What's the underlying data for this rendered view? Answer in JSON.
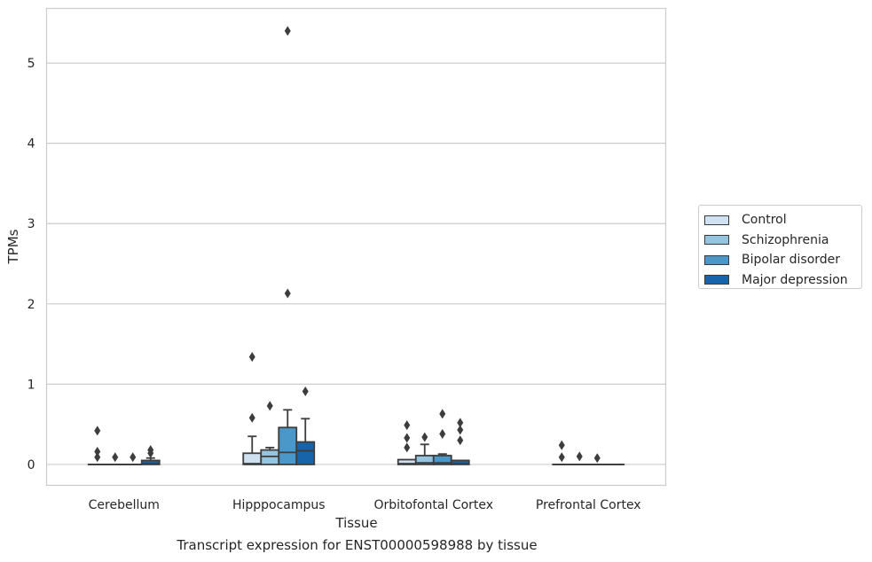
{
  "caption": "Transcript expression for ENST00000598988 by tissue",
  "chart_data": {
    "type": "box",
    "title": "",
    "xlabel": "Tissue",
    "ylabel": "TPMs",
    "ylim": [
      -0.26,
      5.68
    ],
    "yticks": [
      0,
      1,
      2,
      3,
      4,
      5
    ],
    "grid": "horizontal",
    "legend_position": "right",
    "categories": [
      "Cerebellum",
      "Hipppocampus",
      "Orbitofontal Cortex",
      "Prefrontal Cortex"
    ],
    "series": [
      {
        "name": "Control",
        "color": "#d0e1f2",
        "boxes": [
          {
            "q1": 0,
            "median": 0,
            "q3": 0,
            "whisker_low": 0,
            "whisker_high": 0,
            "outliers": [
              0.42,
              0.16,
              0.09
            ]
          },
          {
            "q1": 0,
            "median": 0.01,
            "q3": 0.14,
            "whisker_low": 0,
            "whisker_high": 0.35,
            "outliers": [
              1.34,
              0.58
            ]
          },
          {
            "q1": 0,
            "median": 0.01,
            "q3": 0.06,
            "whisker_low": 0,
            "whisker_high": 0.06,
            "outliers": [
              0.49,
              0.33,
              0.21
            ]
          },
          {
            "q1": 0,
            "median": 0,
            "q3": 0,
            "whisker_low": 0,
            "whisker_high": 0,
            "outliers": [
              0.24,
              0.09
            ]
          }
        ]
      },
      {
        "name": "Schizophrenia",
        "color": "#94c4df",
        "boxes": [
          {
            "q1": 0,
            "median": 0,
            "q3": 0,
            "whisker_low": 0,
            "whisker_high": 0,
            "outliers": [
              0.09
            ]
          },
          {
            "q1": 0,
            "median": 0.1,
            "q3": 0.18,
            "whisker_low": 0,
            "whisker_high": 0.21,
            "outliers": [
              0.73
            ]
          },
          {
            "q1": 0,
            "median": 0.02,
            "q3": 0.11,
            "whisker_low": 0,
            "whisker_high": 0.25,
            "outliers": [
              0.34
            ]
          },
          {
            "q1": 0,
            "median": 0,
            "q3": 0,
            "whisker_low": 0,
            "whisker_high": 0,
            "outliers": [
              0.1
            ]
          }
        ]
      },
      {
        "name": "Bipolar disorder",
        "color": "#4a98c9",
        "boxes": [
          {
            "q1": 0,
            "median": 0,
            "q3": 0,
            "whisker_low": 0,
            "whisker_high": 0,
            "outliers": [
              0.09
            ]
          },
          {
            "q1": 0,
            "median": 0.15,
            "q3": 0.46,
            "whisker_low": 0,
            "whisker_high": 0.68,
            "outliers": [
              5.4,
              2.13
            ]
          },
          {
            "q1": 0,
            "median": 0.02,
            "q3": 0.11,
            "whisker_low": 0,
            "whisker_high": 0.13,
            "outliers": [
              0.63,
              0.38
            ]
          },
          {
            "q1": 0,
            "median": 0,
            "q3": 0,
            "whisker_low": 0,
            "whisker_high": 0,
            "outliers": [
              0.08
            ]
          }
        ]
      },
      {
        "name": "Major depression",
        "color": "#1764ab",
        "boxes": [
          {
            "q1": 0,
            "median": 0.01,
            "q3": 0.05,
            "whisker_low": 0,
            "whisker_high": 0.08,
            "outliers": [
              0.18,
              0.14
            ]
          },
          {
            "q1": 0,
            "median": 0.17,
            "q3": 0.28,
            "whisker_low": 0,
            "whisker_high": 0.57,
            "outliers": [
              0.91
            ]
          },
          {
            "q1": 0,
            "median": 0.01,
            "q3": 0.05,
            "whisker_low": 0,
            "whisker_high": 0.05,
            "outliers": [
              0.52,
              0.43,
              0.3
            ]
          },
          {
            "q1": 0,
            "median": 0,
            "q3": 0,
            "whisker_low": 0,
            "whisker_high": 0,
            "outliers": []
          }
        ]
      }
    ]
  }
}
